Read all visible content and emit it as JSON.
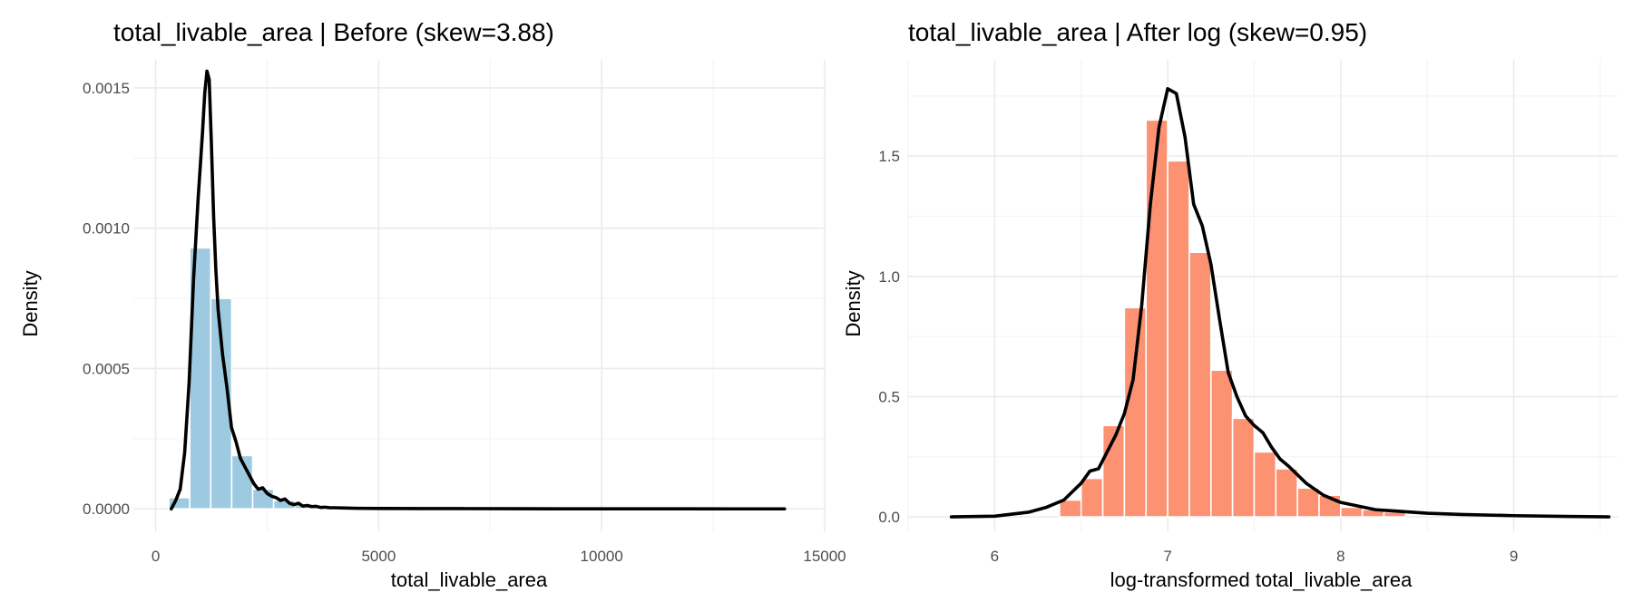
{
  "chart_data": [
    {
      "type": "histogram",
      "title": "total_livable_area | Before (skew=3.88)",
      "xlabel": "total_livable_area",
      "ylabel": "Density",
      "xlim": [
        -500,
        15000
      ],
      "ylim": [
        -8e-05,
        0.0016
      ],
      "x_ticks": [
        0,
        5000,
        10000,
        15000
      ],
      "x_tick_labels": [
        "0",
        "5000",
        "10000",
        "15000"
      ],
      "y_ticks": [
        0,
        0.0005,
        0.001,
        0.0015
      ],
      "y_tick_labels": [
        "0.0000",
        "0.0005",
        "0.0010",
        "0.0015"
      ],
      "grid": true,
      "legend": "none",
      "bar_color": "#9ECAE1",
      "bin_width": 470,
      "bins": [
        {
          "x0": 295,
          "x1": 765,
          "density": 4e-05
        },
        {
          "x0": 765,
          "x1": 1235,
          "density": 0.00093
        },
        {
          "x0": 1235,
          "x1": 1705,
          "density": 0.00075
        },
        {
          "x0": 1705,
          "x1": 2175,
          "density": 0.00019
        },
        {
          "x0": 2175,
          "x1": 2645,
          "density": 7e-05
        },
        {
          "x0": 2645,
          "x1": 3115,
          "density": 3e-05
        },
        {
          "x0": 3115,
          "x1": 3585,
          "density": 1.2e-05
        },
        {
          "x0": 3585,
          "x1": 4055,
          "density": 6e-06
        },
        {
          "x0": 4055,
          "x1": 4525,
          "density": 4e-06
        },
        {
          "x0": 4525,
          "x1": 4995,
          "density": 3e-06
        }
      ],
      "density_curve": {
        "color": "#000000",
        "x": [
          350,
          450,
          550,
          650,
          750,
          850,
          950,
          1050,
          1100,
          1150,
          1200,
          1250,
          1300,
          1350,
          1400,
          1500,
          1600,
          1700,
          1800,
          1900,
          2000,
          2100,
          2200,
          2300,
          2400,
          2500,
          2600,
          2700,
          2800,
          2900,
          3000,
          3100,
          3200,
          3300,
          3400,
          3500,
          3600,
          3700,
          3800,
          3900,
          4000,
          4250,
          4500,
          5000,
          6000,
          7000,
          8000,
          9000,
          10000,
          11000,
          12000,
          13000,
          14100
        ],
        "y": [
          0.0,
          3e-05,
          7e-05,
          0.0002,
          0.00045,
          0.00082,
          0.0011,
          0.00134,
          0.00148,
          0.00156,
          0.00153,
          0.0013,
          0.00104,
          0.00085,
          0.00071,
          0.00055,
          0.00043,
          0.00029,
          0.00024,
          0.00018,
          0.00015,
          0.00012,
          9e-05,
          7e-05,
          7.5e-05,
          5.5e-05,
          4.5e-05,
          4e-05,
          3e-05,
          3.5e-05,
          2e-05,
          1.5e-05,
          2e-05,
          1e-05,
          1.2e-05,
          8e-06,
          9e-06,
          5e-06,
          6e-06,
          4e-06,
          4e-06,
          3e-06,
          2e-06,
          1.5e-06,
          1e-06,
          8e-07,
          5e-07,
          3e-07,
          2e-07,
          1e-07,
          1e-07,
          0.0,
          0.0
        ]
      }
    },
    {
      "type": "histogram",
      "title": "total_livable_area | After log (skew=0.95)",
      "xlabel": "log-transformed total_livable_area",
      "ylabel": "Density",
      "xlim": [
        5.5,
        9.6
      ],
      "ylim": [
        -0.06,
        1.9
      ],
      "x_ticks": [
        6,
        7,
        8,
        9
      ],
      "x_tick_labels": [
        "6",
        "7",
        "8",
        "9"
      ],
      "y_ticks": [
        0,
        0.5,
        1.0,
        1.5
      ],
      "y_tick_labels": [
        "0.0",
        "0.5",
        "1.0",
        "1.5"
      ],
      "grid": true,
      "legend": "none",
      "bar_color": "#FC9272",
      "bin_width": 0.125,
      "bins": [
        {
          "x0": 6.375,
          "x1": 6.5,
          "density": 0.07
        },
        {
          "x0": 6.5,
          "x1": 6.625,
          "density": 0.16
        },
        {
          "x0": 6.625,
          "x1": 6.75,
          "density": 0.38
        },
        {
          "x0": 6.75,
          "x1": 6.875,
          "density": 0.87
        },
        {
          "x0": 6.875,
          "x1": 7.0,
          "density": 1.65
        },
        {
          "x0": 7.0,
          "x1": 7.125,
          "density": 1.48
        },
        {
          "x0": 7.125,
          "x1": 7.25,
          "density": 1.1
        },
        {
          "x0": 7.25,
          "x1": 7.375,
          "density": 0.61
        },
        {
          "x0": 7.375,
          "x1": 7.5,
          "density": 0.41
        },
        {
          "x0": 7.5,
          "x1": 7.625,
          "density": 0.27
        },
        {
          "x0": 7.625,
          "x1": 7.75,
          "density": 0.2
        },
        {
          "x0": 7.75,
          "x1": 7.875,
          "density": 0.12
        },
        {
          "x0": 7.875,
          "x1": 8.0,
          "density": 0.09
        },
        {
          "x0": 8.0,
          "x1": 8.125,
          "density": 0.04
        },
        {
          "x0": 8.125,
          "x1": 8.25,
          "density": 0.03
        },
        {
          "x0": 8.25,
          "x1": 8.375,
          "density": 0.02
        }
      ],
      "density_curve": {
        "color": "#000000",
        "x": [
          5.75,
          6.0,
          6.2,
          6.3,
          6.4,
          6.5,
          6.55,
          6.6,
          6.65,
          6.7,
          6.75,
          6.8,
          6.85,
          6.9,
          6.95,
          7.0,
          7.05,
          7.1,
          7.15,
          7.2,
          7.25,
          7.3,
          7.35,
          7.4,
          7.45,
          7.5,
          7.55,
          7.6,
          7.65,
          7.7,
          7.8,
          7.9,
          8.0,
          8.1,
          8.2,
          8.3,
          8.5,
          8.7,
          9.0,
          9.3,
          9.55
        ],
        "y": [
          0.0,
          0.003,
          0.02,
          0.04,
          0.07,
          0.14,
          0.19,
          0.2,
          0.27,
          0.34,
          0.43,
          0.57,
          0.88,
          1.3,
          1.62,
          1.78,
          1.76,
          1.58,
          1.3,
          1.21,
          1.05,
          0.82,
          0.6,
          0.5,
          0.42,
          0.38,
          0.35,
          0.29,
          0.24,
          0.21,
          0.14,
          0.09,
          0.06,
          0.045,
          0.03,
          0.025,
          0.015,
          0.01,
          0.005,
          0.002,
          0.0
        ]
      }
    }
  ]
}
